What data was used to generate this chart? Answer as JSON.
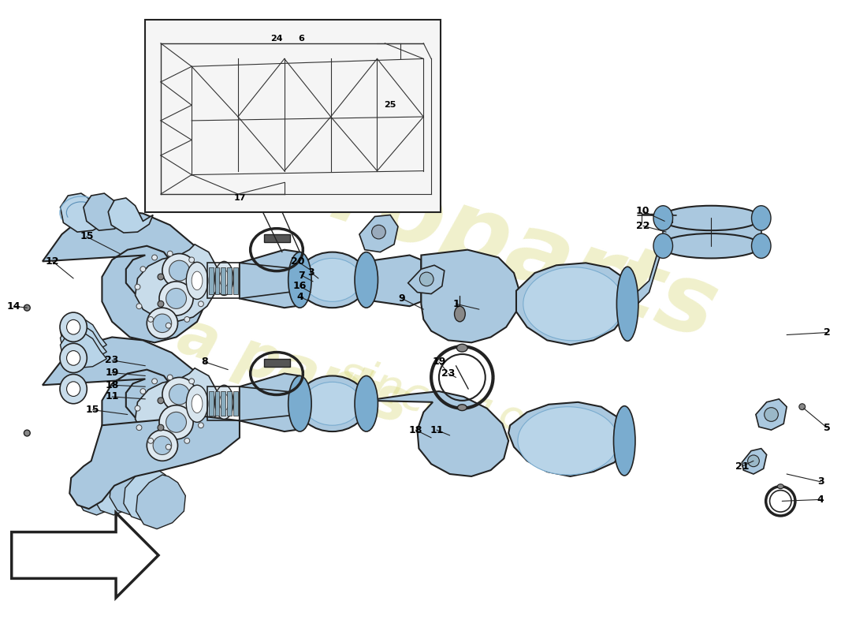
{
  "bg": "#ffffff",
  "mc": "#aac8df",
  "mc2": "#b8d4e8",
  "dc": "#7aaccf",
  "dc2": "#5a90b8",
  "lc": "#222222",
  "lc2": "#444444",
  "wm_color": "#d8d878",
  "wm_alpha": 0.38,
  "figsize": [
    11.0,
    8.0
  ],
  "dpi": 100,
  "parts_left": [
    [
      "14",
      25,
      390
    ],
    [
      "12",
      80,
      335
    ],
    [
      "15",
      135,
      305
    ],
    [
      "23",
      160,
      462
    ],
    [
      "19",
      160,
      478
    ],
    [
      "18",
      160,
      493
    ],
    [
      "11",
      160,
      508
    ],
    [
      "15",
      135,
      525
    ]
  ],
  "parts_center": [
    [
      "20",
      392,
      345
    ],
    [
      "7",
      400,
      360
    ],
    [
      "16",
      400,
      373
    ],
    [
      "4",
      400,
      386
    ],
    [
      "3",
      412,
      358
    ],
    [
      "8",
      285,
      468
    ]
  ],
  "parts_right": [
    [
      "1",
      595,
      398
    ],
    [
      "9",
      530,
      388
    ],
    [
      "19",
      590,
      468
    ],
    [
      "23",
      600,
      480
    ],
    [
      "11",
      590,
      545
    ],
    [
      "18",
      555,
      548
    ]
  ],
  "parts_far_right": [
    [
      "2",
      1065,
      425
    ],
    [
      "5",
      1065,
      548
    ],
    [
      "21",
      965,
      598
    ],
    [
      "3",
      1062,
      618
    ],
    [
      "4",
      1062,
      638
    ]
  ],
  "parts_top": [
    [
      "10",
      840,
      268
    ],
    [
      "22",
      840,
      288
    ]
  ],
  "inset_nums": [
    [
      "24",
      358,
      42
    ],
    [
      "6",
      390,
      42
    ],
    [
      "25",
      505,
      128
    ],
    [
      "17",
      310,
      248
    ]
  ]
}
